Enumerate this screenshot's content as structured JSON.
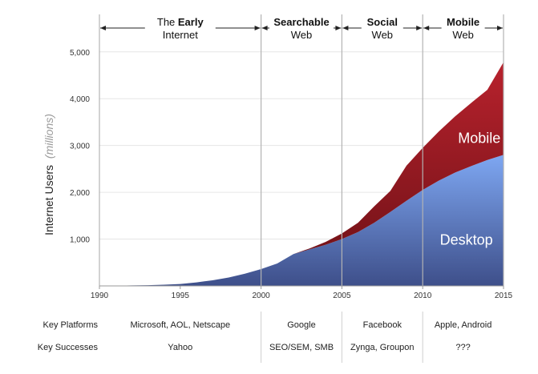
{
  "chart_data": {
    "type": "area",
    "ylabel": "Internet Users",
    "ylabel_unit": "(millions)",
    "xlim": [
      1990,
      2015
    ],
    "ylim": [
      0,
      5800
    ],
    "xticks": [
      "1990",
      "1995",
      "2000",
      "2005",
      "2010",
      "2015"
    ],
    "yticks": [
      "1,000",
      "2,000",
      "3,000",
      "4,000",
      "5,000"
    ],
    "x": [
      1990,
      1991,
      1992,
      1993,
      1994,
      1995,
      1996,
      1997,
      1998,
      1999,
      2000,
      2001,
      2002,
      2003,
      2004,
      2005,
      2006,
      2007,
      2008,
      2009,
      2010,
      2011,
      2012,
      2013,
      2014,
      2015
    ],
    "series": [
      {
        "name": "Desktop",
        "color": "#5b7bc7",
        "values": [
          3,
          5,
          10,
          15,
          25,
          40,
          75,
          120,
          180,
          260,
          360,
          480,
          680,
          780,
          880,
          1000,
          1150,
          1350,
          1580,
          1820,
          2050,
          2250,
          2420,
          2560,
          2690,
          2800
        ]
      },
      {
        "name": "Mobile",
        "color": "#9b1c22",
        "values": [
          0,
          0,
          0,
          0,
          0,
          0,
          0,
          0,
          0,
          0,
          0,
          0,
          0,
          20,
          60,
          120,
          200,
          350,
          450,
          750,
          900,
          1050,
          1200,
          1350,
          1500,
          1980
        ]
      }
    ],
    "eras": [
      {
        "start": 1990,
        "end": 2000,
        "title_plain": "The ",
        "title_bold": "Early",
        "subtitle": "Internet"
      },
      {
        "start": 2000,
        "end": 2005,
        "title_plain": "",
        "title_bold": "Searchable",
        "subtitle": "Web"
      },
      {
        "start": 2005,
        "end": 2010,
        "title_plain": "",
        "title_bold": "Social",
        "subtitle": "Web"
      },
      {
        "start": 2010,
        "end": 2015,
        "title_plain": "",
        "title_bold": "Mobile",
        "subtitle": "Web"
      }
    ],
    "table": {
      "rows": [
        {
          "label": "Key Platforms",
          "cells": [
            "Microsoft, AOL, Netscape",
            "Google",
            "Facebook",
            "Apple, Android"
          ]
        },
        {
          "label": "Key Successes",
          "cells": [
            "Yahoo",
            "SEO/SEM, SMB",
            "Zynga, Groupon",
            "???"
          ]
        }
      ]
    }
  }
}
